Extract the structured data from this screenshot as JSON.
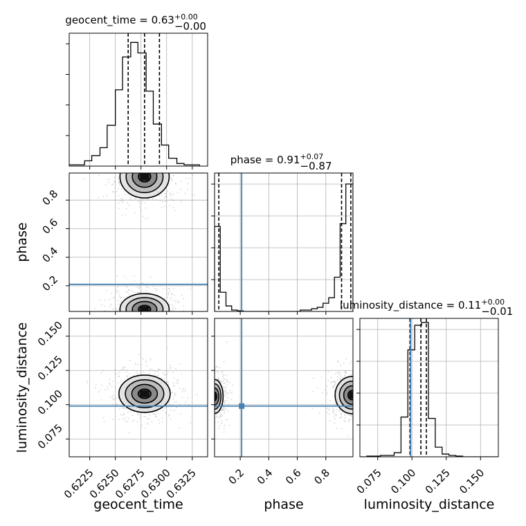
{
  "chart_data": {
    "type": "corner",
    "params": [
      {
        "name": "geocent_time",
        "range": [
          0.6205,
          0.634
        ],
        "ticks": [
          0.6225,
          0.625,
          0.6275,
          0.63,
          0.6325
        ],
        "tick_labels": [
          "0.6225",
          "0.6250",
          "0.6275",
          "0.6300",
          "0.6325"
        ],
        "quantiles": [
          0.62625,
          0.62785,
          0.6293
        ],
        "truth": null,
        "title": {
          "base": "geocent_time = 0.63",
          "plus": "+0.00",
          "minus": "−0.00"
        },
        "hist_bins": [
          0.6205,
          0.6212,
          0.622,
          0.6227,
          0.6235,
          0.6242,
          0.625,
          0.6257,
          0.6265,
          0.6272,
          0.628,
          0.6287,
          0.6295,
          0.6302,
          0.631,
          0.6317,
          0.6325,
          0.6332
        ],
        "hist_counts": [
          0.01,
          0.01,
          0.04,
          0.08,
          0.14,
          0.31,
          0.58,
          0.83,
          0.94,
          0.86,
          0.57,
          0.32,
          0.16,
          0.06,
          0.02,
          0.01,
          0.01
        ]
      },
      {
        "name": "phase",
        "range": [
          0.02,
          0.99
        ],
        "ticks": [
          0.2,
          0.4,
          0.6,
          0.8
        ],
        "tick_labels": [
          "0.2",
          "0.4",
          "0.6",
          "0.8"
        ],
        "quantiles": [
          0.05,
          0.91,
          0.975
        ],
        "truth": 0.21,
        "title": {
          "base": "phase = 0.91",
          "plus": "+0.07",
          "minus": "−0.87"
        },
        "hist_bins": [
          0.02,
          0.06,
          0.1,
          0.14,
          0.18,
          0.22,
          0.26,
          0.3,
          0.34,
          0.38,
          0.42,
          0.46,
          0.5,
          0.54,
          0.58,
          0.62,
          0.66,
          0.7,
          0.74,
          0.78,
          0.82,
          0.86,
          0.9,
          0.94,
          0.99
        ],
        "hist_counts": [
          0.62,
          0.14,
          0.04,
          0.01,
          0.005,
          0.0,
          0.0,
          0.0,
          0.0,
          0.0,
          0.0,
          0.0,
          0.0,
          0.0,
          0.0,
          0.01,
          0.01,
          0.02,
          0.03,
          0.06,
          0.1,
          0.25,
          0.64,
          0.93
        ]
      },
      {
        "name": "luminosity_distance",
        "range": [
          0.062,
          0.163
        ],
        "ticks": [
          0.075,
          0.1,
          0.125,
          0.15
        ],
        "tick_labels": [
          "0.075",
          "0.100",
          "0.125",
          "0.150"
        ],
        "quantiles": [
          0.0985,
          0.1065,
          0.1105
        ],
        "truth": 0.099,
        "title": {
          "base": "luminosity_distance = 0.11",
          "plus": "+0.00",
          "minus": "−0.01"
        },
        "hist_bins": [
          0.062,
          0.067,
          0.072,
          0.077,
          0.082,
          0.087,
          0.092,
          0.097,
          0.102,
          0.107,
          0.112,
          0.117,
          0.122,
          0.127,
          0.132,
          0.137,
          0.142,
          0.147,
          0.152,
          0.157,
          0.163
        ],
        "hist_counts": [
          0.0,
          0.005,
          0.005,
          0.01,
          0.01,
          0.03,
          0.29,
          0.78,
          0.96,
          0.98,
          0.28,
          0.07,
          0.02,
          0.01,
          0.005,
          0.0,
          0.0,
          0.0,
          0.0,
          0.0
        ]
      }
    ],
    "y_ticks": {
      "phase": {
        "values": [
          0.2,
          0.4,
          0.6,
          0.8
        ],
        "labels": [
          "0.2",
          "0.4",
          "0.6",
          "0.8"
        ]
      },
      "luminosity_distance": {
        "values": [
          0.075,
          0.1,
          0.125,
          0.15
        ],
        "labels": [
          "0.075",
          "0.100",
          "0.125",
          "0.150"
        ]
      }
    },
    "contour_levels": [
      0.5,
      1.0,
      1.5,
      2.0
    ],
    "blobs": {
      "geocent_time-phase": [
        {
          "center": [
            0.62785,
            0.965
          ],
          "sigma": [
            0.0012,
            0.075
          ]
        },
        {
          "center": [
            0.62785,
            0.035
          ],
          "sigma": [
            0.0012,
            0.055
          ]
        }
      ],
      "geocent_time-luminosity_distance": [
        {
          "center": [
            0.62785,
            0.108
          ],
          "sigma": [
            0.00125,
            0.0068
          ]
        }
      ],
      "phase-luminosity_distance": [
        {
          "center": [
            0.985,
            0.107
          ],
          "sigma": [
            0.06,
            0.0068
          ]
        },
        {
          "center": [
            0.02,
            0.106
          ],
          "sigma": [
            0.03,
            0.0062
          ]
        }
      ]
    },
    "grid": true,
    "colors": {
      "truth": "#4682b4",
      "hist": "#000000",
      "quantile": "#000000",
      "grid": "#b0b0b0",
      "contour": "#000000"
    }
  }
}
